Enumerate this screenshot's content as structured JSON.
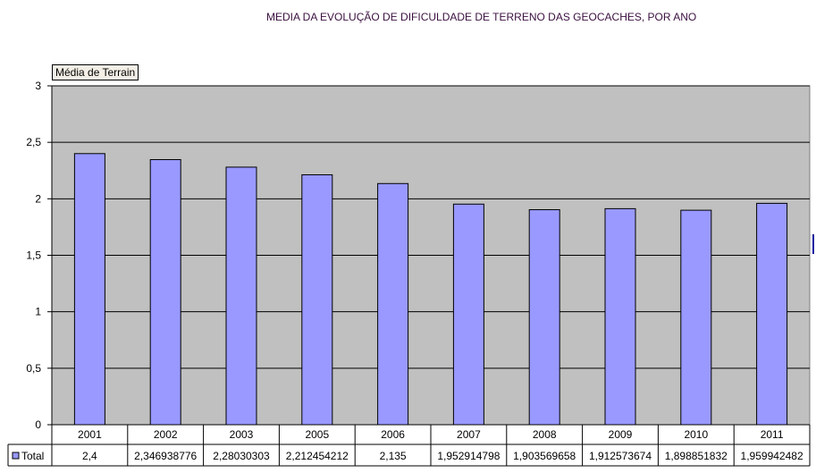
{
  "chart_data": {
    "type": "bar",
    "title": "MEDIA DA EVOLUÇÃO DE DIFICULDADE DE TERRENO DAS GEOCACHES, POR ANO",
    "series_tag": "Média de Terrain",
    "categories": [
      "2001",
      "2002",
      "2003",
      "2005",
      "2006",
      "2007",
      "2008",
      "2009",
      "2010",
      "2011"
    ],
    "series": [
      {
        "name": "Total",
        "values": [
          2.4,
          2.346938776,
          2.28030303,
          2.212454212,
          2.135,
          1.952914798,
          1.903569658,
          1.912573674,
          1.898851832,
          1.959942482
        ],
        "labels": [
          "2,4",
          "2,346938776",
          "2,28030303",
          "2,212454212",
          "2,135",
          "1,952914798",
          "1,903569658",
          "1,912573674",
          "1,898851832",
          "1,959942482"
        ]
      }
    ],
    "y_ticks": [
      "0",
      "0,5",
      "1",
      "1,5",
      "2",
      "2,5",
      "3"
    ],
    "ylim": [
      0,
      3
    ],
    "grid": true,
    "legend": "data-table-bottom",
    "colors": {
      "bar": "#9999ff",
      "plot_background": "#c0c0c0",
      "title": "#3b1040"
    }
  }
}
